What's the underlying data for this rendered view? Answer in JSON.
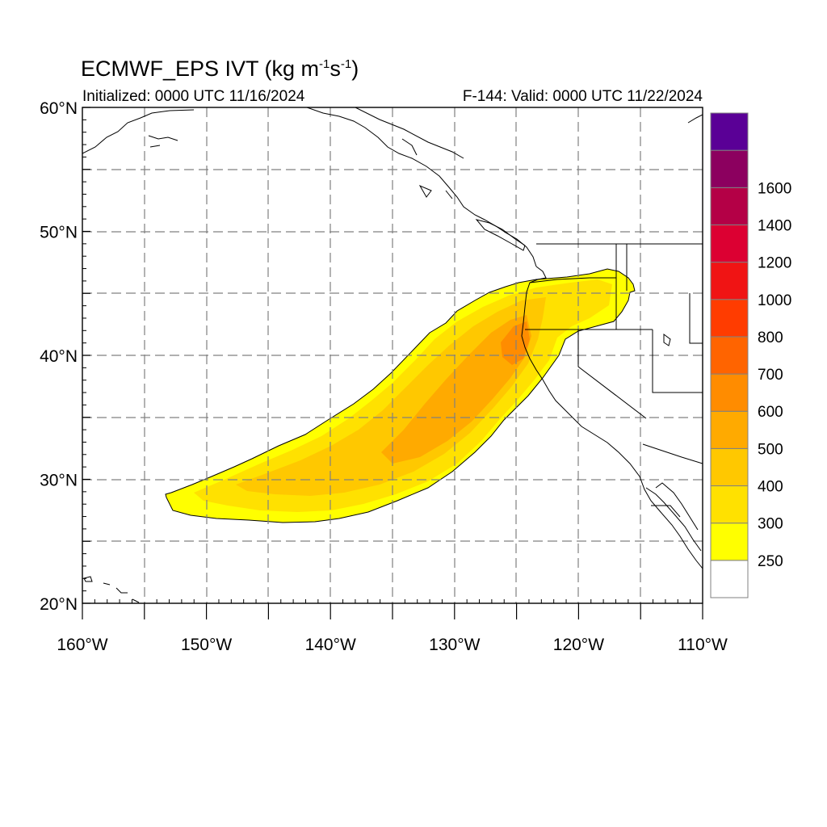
{
  "title": {
    "main": "ECMWF_EPS IVT (kg m",
    "sup1": "-1",
    "mid": "s",
    "sup2": "-1",
    "end": ")"
  },
  "init_label": "Initialized: 0000 UTC 11/16/2024",
  "valid_label": "F-144: Valid: 0000 UTC 11/22/2024",
  "map": {
    "lon_range": [
      -160,
      -110
    ],
    "lat_range": [
      20,
      60
    ],
    "lat_ticks": [
      {
        "value": 60,
        "label": "60°N"
      },
      {
        "value": 50,
        "label": "50°N"
      },
      {
        "value": 40,
        "label": "40°N"
      },
      {
        "value": 30,
        "label": "30°N"
      },
      {
        "value": 20,
        "label": "20°N"
      }
    ],
    "lon_ticks": [
      {
        "value": -160,
        "label": "160°W"
      },
      {
        "value": -150,
        "label": "150°W"
      },
      {
        "value": -140,
        "label": "140°W"
      },
      {
        "value": -130,
        "label": "130°W"
      },
      {
        "value": -120,
        "label": "120°W"
      },
      {
        "value": -110,
        "label": "110°W"
      }
    ],
    "gridlines": "dashed, every 5 degrees"
  },
  "colorbar": {
    "levels": [
      {
        "label": "250",
        "color": "#ffff00"
      },
      {
        "label": "300",
        "color": "#ffe100"
      },
      {
        "label": "400",
        "color": "#ffc800"
      },
      {
        "label": "500",
        "color": "#ffaa00"
      },
      {
        "label": "600",
        "color": "#ff8c00"
      },
      {
        "label": "700",
        "color": "#ff6400"
      },
      {
        "label": "800",
        "color": "#ff3c00"
      },
      {
        "label": "1000",
        "color": "#f01414"
      },
      {
        "label": "1200",
        "color": "#dc0032"
      },
      {
        "label": "1400",
        "color": "#b40046"
      },
      {
        "label": "1600",
        "color": "#8c005f"
      },
      {
        "label": "",
        "color": "#5a0096"
      }
    ],
    "below_min_color": "#ffffff"
  },
  "chart_data": {
    "type": "heatmap",
    "variable": "IVT",
    "units": "kg m-1 s-1",
    "features": [
      {
        "name": "atmospheric river",
        "from": [
          -154,
          28
        ],
        "to": [
          -116,
          46
        ],
        "peak_value_range": [
          500,
          700
        ],
        "peak_location": [
          -125,
          41
        ]
      }
    ]
  }
}
